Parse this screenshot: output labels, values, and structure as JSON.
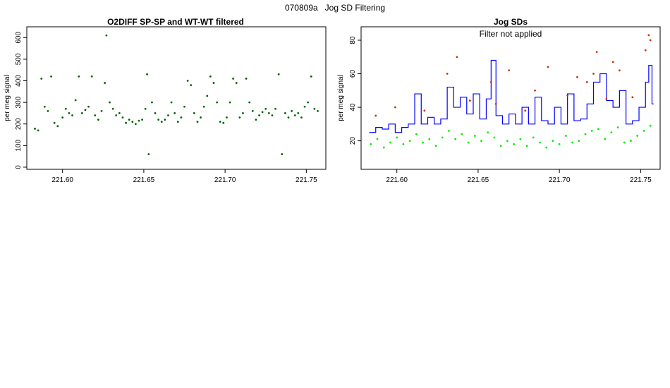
{
  "page_title": "070809a   Jog SD Filtering",
  "colors": {
    "left_points": "#006400",
    "green_points": "#00ee00",
    "red_points": "#cc3300",
    "blue_line": "#0000ff",
    "axis": "#000000"
  },
  "chart_data": [
    {
      "type": "scatter",
      "title": "O2DIFF SP-SP and WT-WT filtered",
      "xlabel": "",
      "ylabel": "per meg signal",
      "xlim": [
        221.578,
        221.762
      ],
      "ylim": [
        -10,
        650
      ],
      "x_ticks": [
        221.6,
        221.65,
        221.7,
        221.75
      ],
      "x_tick_labels": [
        "221.60",
        "221.65",
        "221.70",
        "221.75"
      ],
      "y_ticks": [
        0,
        100,
        200,
        300,
        400,
        500,
        600
      ],
      "y_tick_labels": [
        "0",
        "100",
        "200",
        "300",
        "400",
        "500",
        "600"
      ],
      "grid": false,
      "series": [
        {
          "color": "#006400",
          "points": [
            [
              221.583,
              178
            ],
            [
              221.585,
              170
            ],
            [
              221.587,
              410
            ],
            [
              221.589,
              280
            ],
            [
              221.591,
              260
            ],
            [
              221.593,
              420
            ],
            [
              221.595,
              205
            ],
            [
              221.597,
              190
            ],
            [
              221.6,
              230
            ],
            [
              221.602,
              270
            ],
            [
              221.604,
              250
            ],
            [
              221.606,
              240
            ],
            [
              221.608,
              310
            ],
            [
              221.61,
              420
            ],
            [
              221.612,
              250
            ],
            [
              221.614,
              265
            ],
            [
              221.616,
              280
            ],
            [
              221.618,
              420
            ],
            [
              221.62,
              240
            ],
            [
              221.622,
              220
            ],
            [
              221.624,
              260
            ],
            [
              221.626,
              390
            ],
            [
              221.627,
              610
            ],
            [
              221.629,
              300
            ],
            [
              221.631,
              270
            ],
            [
              221.633,
              240
            ],
            [
              221.635,
              250
            ],
            [
              221.637,
              230
            ],
            [
              221.639,
              205
            ],
            [
              221.641,
              220
            ],
            [
              221.643,
              210
            ],
            [
              221.645,
              200
            ],
            [
              221.647,
              215
            ],
            [
              221.649,
              220
            ],
            [
              221.651,
              270
            ],
            [
              221.652,
              430
            ],
            [
              221.653,
              60
            ],
            [
              221.655,
              300
            ],
            [
              221.657,
              250
            ],
            [
              221.659,
              220
            ],
            [
              221.661,
              210
            ],
            [
              221.663,
              220
            ],
            [
              221.665,
              240
            ],
            [
              221.667,
              300
            ],
            [
              221.669,
              250
            ],
            [
              221.671,
              210
            ],
            [
              221.673,
              230
            ],
            [
              221.675,
              280
            ],
            [
              221.677,
              400
            ],
            [
              221.679,
              380
            ],
            [
              221.681,
              250
            ],
            [
              221.683,
              210
            ],
            [
              221.685,
              230
            ],
            [
              221.687,
              280
            ],
            [
              221.689,
              330
            ],
            [
              221.691,
              420
            ],
            [
              221.693,
              390
            ],
            [
              221.695,
              300
            ],
            [
              221.697,
              210
            ],
            [
              221.699,
              205
            ],
            [
              221.701,
              230
            ],
            [
              221.703,
              300
            ],
            [
              221.705,
              410
            ],
            [
              221.707,
              390
            ],
            [
              221.709,
              230
            ],
            [
              221.711,
              250
            ],
            [
              221.713,
              410
            ],
            [
              221.715,
              300
            ],
            [
              221.717,
              260
            ],
            [
              221.719,
              220
            ],
            [
              221.721,
              240
            ],
            [
              221.723,
              255
            ],
            [
              221.725,
              270
            ],
            [
              221.727,
              250
            ],
            [
              221.729,
              240
            ],
            [
              221.731,
              270
            ],
            [
              221.733,
              430
            ],
            [
              221.735,
              60
            ],
            [
              221.737,
              250
            ],
            [
              221.739,
              230
            ],
            [
              221.741,
              260
            ],
            [
              221.743,
              240
            ],
            [
              221.745,
              250
            ],
            [
              221.747,
              230
            ],
            [
              221.749,
              280
            ],
            [
              221.751,
              300
            ],
            [
              221.753,
              420
            ],
            [
              221.755,
              270
            ],
            [
              221.757,
              260
            ]
          ]
        }
      ]
    },
    {
      "type": "line",
      "title": "Jog SDs",
      "annotation": "Filter not applied",
      "xlabel": "",
      "ylabel": "per meg signal",
      "xlim": [
        221.578,
        221.762
      ],
      "ylim": [
        3,
        88
      ],
      "x_ticks": [
        221.6,
        221.65,
        221.7,
        221.75
      ],
      "x_tick_labels": [
        "221.60",
        "221.65",
        "221.70",
        "221.75"
      ],
      "y_ticks": [
        20,
        40,
        60,
        80
      ],
      "y_tick_labels": [
        "20",
        "40",
        "60",
        "80"
      ],
      "grid": false,
      "series": [
        {
          "color": "#0000ff",
          "style": "step",
          "points": [
            [
              221.583,
              25
            ],
            [
              221.587,
              28
            ],
            [
              221.591,
              27
            ],
            [
              221.595,
              30
            ],
            [
              221.599,
              25
            ],
            [
              221.603,
              28
            ],
            [
              221.607,
              30
            ],
            [
              221.611,
              48
            ],
            [
              221.615,
              30
            ],
            [
              221.619,
              34
            ],
            [
              221.623,
              30
            ],
            [
              221.627,
              33
            ],
            [
              221.631,
              52
            ],
            [
              221.635,
              40
            ],
            [
              221.639,
              46
            ],
            [
              221.643,
              36
            ],
            [
              221.647,
              48
            ],
            [
              221.651,
              33
            ],
            [
              221.655,
              45
            ],
            [
              221.658,
              68
            ],
            [
              221.661,
              35
            ],
            [
              221.665,
              30
            ],
            [
              221.669,
              36
            ],
            [
              221.673,
              30
            ],
            [
              221.677,
              40
            ],
            [
              221.681,
              30
            ],
            [
              221.685,
              46
            ],
            [
              221.689,
              32
            ],
            [
              221.693,
              30
            ],
            [
              221.697,
              40
            ],
            [
              221.701,
              30
            ],
            [
              221.705,
              48
            ],
            [
              221.709,
              32
            ],
            [
              221.713,
              33
            ],
            [
              221.717,
              42
            ],
            [
              221.721,
              55
            ],
            [
              221.725,
              60
            ],
            [
              221.729,
              44
            ],
            [
              221.733,
              40
            ],
            [
              221.737,
              50
            ],
            [
              221.741,
              30
            ],
            [
              221.745,
              32
            ],
            [
              221.749,
              40
            ],
            [
              221.753,
              55
            ],
            [
              221.755,
              65
            ],
            [
              221.757,
              42
            ]
          ]
        },
        {
          "color": "#cc3300",
          "style": "points",
          "points": [
            [
              221.587,
              35
            ],
            [
              221.599,
              40
            ],
            [
              221.617,
              38
            ],
            [
              221.631,
              60
            ],
            [
              221.637,
              70
            ],
            [
              221.645,
              44
            ],
            [
              221.658,
              55
            ],
            [
              221.661,
              42
            ],
            [
              221.669,
              62
            ],
            [
              221.679,
              38
            ],
            [
              221.685,
              50
            ],
            [
              221.693,
              64
            ],
            [
              221.705,
              47
            ],
            [
              221.711,
              58
            ],
            [
              221.717,
              55
            ],
            [
              221.721,
              60
            ],
            [
              221.723,
              73
            ],
            [
              221.729,
              45
            ],
            [
              221.733,
              67
            ],
            [
              221.737,
              62
            ],
            [
              221.745,
              46
            ],
            [
              221.753,
              74
            ],
            [
              221.755,
              83
            ],
            [
              221.756,
              80
            ]
          ]
        },
        {
          "color": "#00ee00",
          "style": "points",
          "points": [
            [
              221.584,
              18
            ],
            [
              221.588,
              21
            ],
            [
              221.592,
              16
            ],
            [
              221.596,
              19
            ],
            [
              221.6,
              22
            ],
            [
              221.604,
              18
            ],
            [
              221.608,
              20
            ],
            [
              221.612,
              24
            ],
            [
              221.616,
              19
            ],
            [
              221.62,
              21
            ],
            [
              221.624,
              17
            ],
            [
              221.628,
              22
            ],
            [
              221.632,
              26
            ],
            [
              221.636,
              21
            ],
            [
              221.64,
              24
            ],
            [
              221.644,
              19
            ],
            [
              221.648,
              23
            ],
            [
              221.652,
              20
            ],
            [
              221.656,
              25
            ],
            [
              221.66,
              22
            ],
            [
              221.664,
              17
            ],
            [
              221.668,
              20
            ],
            [
              221.672,
              18
            ],
            [
              221.676,
              21
            ],
            [
              221.68,
              17
            ],
            [
              221.684,
              22
            ],
            [
              221.688,
              19
            ],
            [
              221.692,
              16
            ],
            [
              221.696,
              20
            ],
            [
              221.7,
              18
            ],
            [
              221.704,
              23
            ],
            [
              221.708,
              19
            ],
            [
              221.712,
              20
            ],
            [
              221.716,
              24
            ],
            [
              221.72,
              26
            ],
            [
              221.724,
              27
            ],
            [
              221.728,
              21
            ],
            [
              221.732,
              25
            ],
            [
              221.736,
              28
            ],
            [
              221.74,
              19
            ],
            [
              221.744,
              20
            ],
            [
              221.748,
              23
            ],
            [
              221.752,
              26
            ],
            [
              221.756,
              29
            ]
          ]
        }
      ]
    }
  ]
}
